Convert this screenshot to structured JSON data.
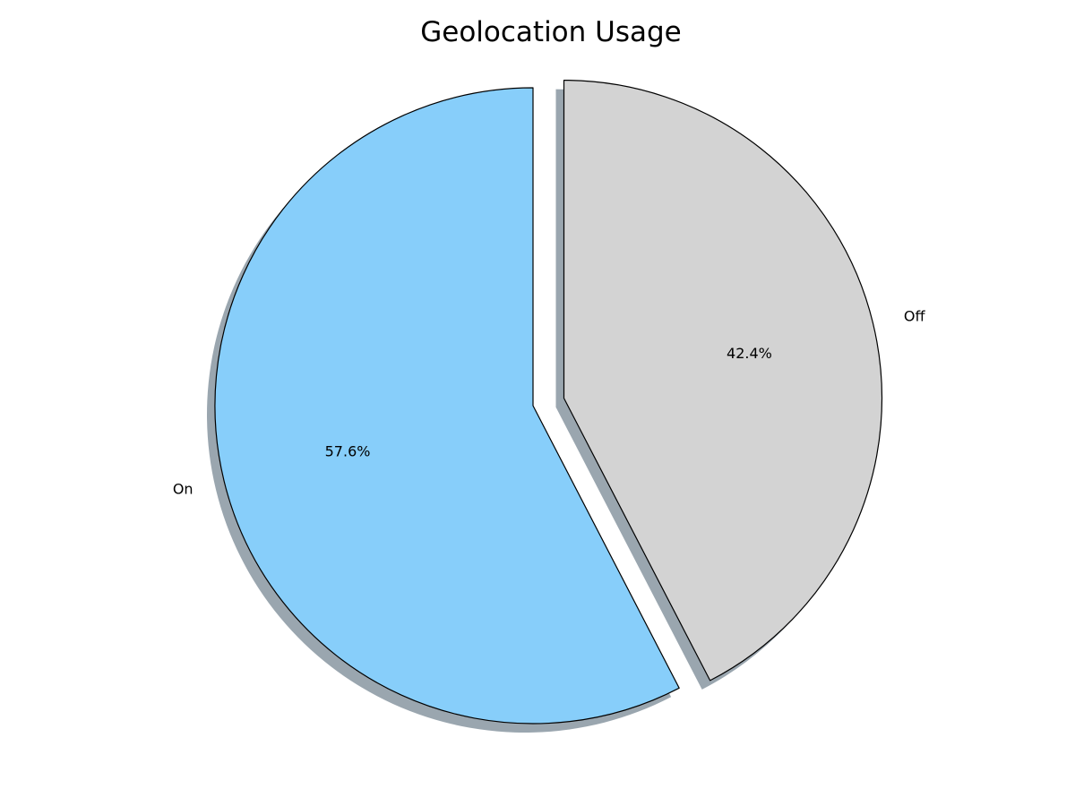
{
  "chart_data": {
    "type": "pie",
    "title": "Geolocation Usage",
    "categories": [
      "On",
      "Off"
    ],
    "values": [
      57.6,
      42.4
    ],
    "percent_labels": [
      "57.6%",
      "42.4%"
    ],
    "colors": [
      "#87cefa",
      "#d3d3d3"
    ],
    "edge_color": "#000000",
    "explode": [
      0,
      0.1
    ],
    "start_angle": 90,
    "direction": "counterclockwise",
    "shadow": true
  }
}
